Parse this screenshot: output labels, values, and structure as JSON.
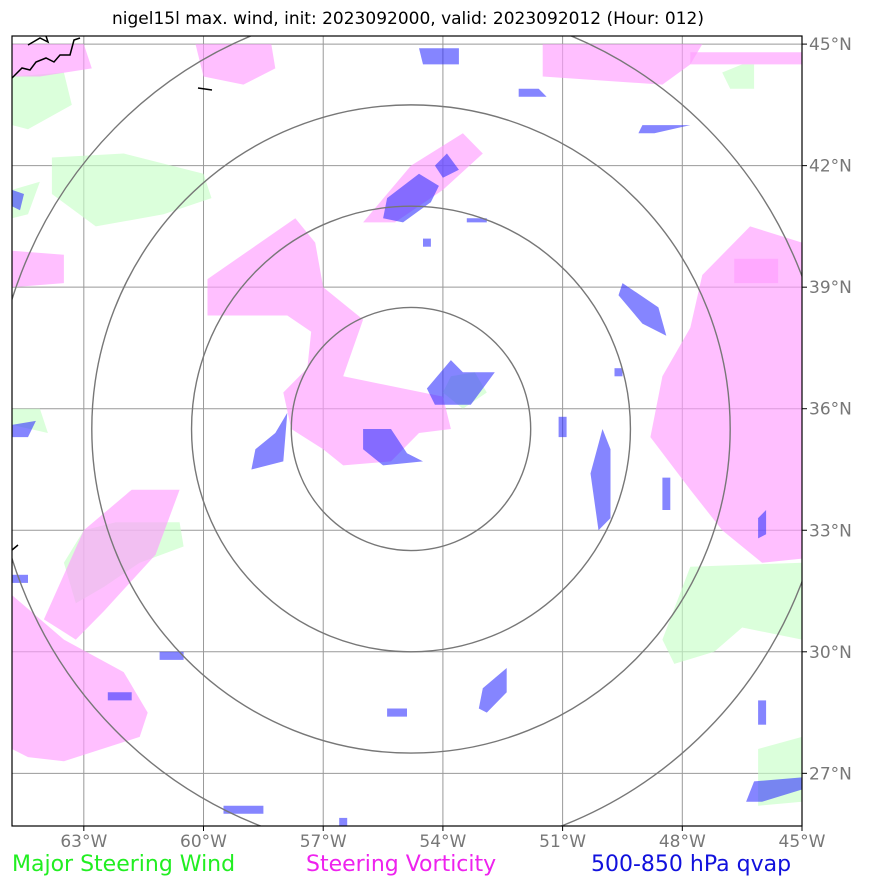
{
  "title": "nigel15l max. wind, init: 2023092000, valid: 2023092012 (Hour: 012)",
  "map": {
    "lon_range": [
      -64.8,
      -45.0
    ],
    "lat_range": [
      25.7,
      45.2
    ],
    "storm_center": {
      "lon": -54.8,
      "lat": 35.5
    },
    "range_rings_deg": [
      3.0,
      5.5,
      8.0,
      10.5
    ],
    "lon_ticks": [
      {
        "value": -63,
        "label": "63°W"
      },
      {
        "value": -60,
        "label": "60°W"
      },
      {
        "value": -57,
        "label": "57°W"
      },
      {
        "value": -54,
        "label": "54°W"
      },
      {
        "value": -51,
        "label": "51°W"
      },
      {
        "value": -48,
        "label": "48°W"
      },
      {
        "value": -45,
        "label": "45°W"
      }
    ],
    "lat_ticks": [
      {
        "value": 45,
        "label": "45°N"
      },
      {
        "value": 42,
        "label": "42°N"
      },
      {
        "value": 39,
        "label": "39°N"
      },
      {
        "value": 36,
        "label": "36°N"
      },
      {
        "value": 33,
        "label": "33°N"
      },
      {
        "value": 30,
        "label": "30°N"
      },
      {
        "value": 27,
        "label": "27°N"
      }
    ]
  },
  "layers": {
    "steering_wind": {
      "color": "#c8ffc8",
      "opacity": 0.65,
      "polygons": [
        [
          [
            -64.8,
            44.2
          ],
          [
            -63.5,
            44.3
          ],
          [
            -63.3,
            43.5
          ],
          [
            -64.4,
            42.9
          ],
          [
            -64.8,
            43.0
          ]
        ],
        [
          [
            -63.8,
            42.2
          ],
          [
            -62.0,
            42.3
          ],
          [
            -60.0,
            41.8
          ],
          [
            -59.8,
            41.2
          ],
          [
            -61.0,
            40.8
          ],
          [
            -62.7,
            40.5
          ],
          [
            -63.8,
            41.3
          ]
        ],
        [
          [
            -64.8,
            41.4
          ],
          [
            -64.1,
            41.6
          ],
          [
            -64.4,
            40.8
          ],
          [
            -64.8,
            40.7
          ]
        ],
        [
          [
            -62.2,
            33.2
          ],
          [
            -60.6,
            33.2
          ],
          [
            -60.5,
            32.6
          ],
          [
            -61.6,
            32.2
          ],
          [
            -62.5,
            31.6
          ],
          [
            -63.2,
            31.2
          ],
          [
            -63.5,
            32.2
          ],
          [
            -63.0,
            33.0
          ]
        ],
        [
          [
            -54.0,
            36.4
          ],
          [
            -53.8,
            36.8
          ],
          [
            -53.2,
            36.9
          ],
          [
            -52.9,
            36.4
          ],
          [
            -53.5,
            36.0
          ]
        ],
        [
          [
            -46.5,
            44.5
          ],
          [
            -46.2,
            44.5
          ],
          [
            -46.2,
            43.9
          ],
          [
            -46.8,
            43.9
          ],
          [
            -47.0,
            44.3
          ]
        ],
        [
          [
            -47.8,
            32.1
          ],
          [
            -45.0,
            32.2
          ],
          [
            -45.0,
            30.3
          ],
          [
            -46.5,
            30.6
          ],
          [
            -47.2,
            30.0
          ],
          [
            -48.2,
            29.7
          ],
          [
            -48.5,
            30.3
          ]
        ],
        [
          [
            -46.1,
            27.6
          ],
          [
            -45.0,
            27.9
          ],
          [
            -45.0,
            26.3
          ],
          [
            -46.1,
            26.2
          ]
        ],
        [
          [
            -64.8,
            36.0
          ],
          [
            -64.1,
            36.0
          ],
          [
            -63.9,
            35.4
          ],
          [
            -64.8,
            35.6
          ]
        ]
      ]
    },
    "steering_vorticity": {
      "color": "#ff9cff",
      "opacity": 0.65,
      "polygons": [
        [
          [
            -64.8,
            45.0
          ],
          [
            -63.0,
            45.0
          ],
          [
            -62.8,
            44.4
          ],
          [
            -64.1,
            44.2
          ],
          [
            -64.8,
            44.2
          ]
        ],
        [
          [
            -60.2,
            45.0
          ],
          [
            -58.3,
            45.0
          ],
          [
            -58.2,
            44.4
          ],
          [
            -59.0,
            44.0
          ],
          [
            -60.0,
            44.2
          ]
        ],
        [
          [
            -51.5,
            45.0
          ],
          [
            -47.5,
            45.0
          ],
          [
            -47.8,
            44.5
          ],
          [
            -48.5,
            44.0
          ],
          [
            -51.5,
            44.2
          ]
        ],
        [
          [
            -47.8,
            44.8
          ],
          [
            -45.0,
            44.8
          ],
          [
            -45.0,
            44.5
          ],
          [
            -47.8,
            44.5
          ]
        ],
        [
          [
            -56.0,
            40.6
          ],
          [
            -54.8,
            42.0
          ],
          [
            -53.5,
            42.8
          ],
          [
            -53.0,
            42.3
          ],
          [
            -54.0,
            41.4
          ],
          [
            -55.2,
            40.6
          ]
        ],
        [
          [
            -64.8,
            39.9
          ],
          [
            -63.5,
            39.8
          ],
          [
            -63.5,
            39.1
          ],
          [
            -64.8,
            39.0
          ]
        ],
        [
          [
            -59.9,
            39.2
          ],
          [
            -57.7,
            40.7
          ],
          [
            -57.2,
            40.1
          ],
          [
            -57.0,
            39.0
          ],
          [
            -56.0,
            38.2
          ],
          [
            -56.5,
            36.8
          ],
          [
            -55.0,
            36.5
          ],
          [
            -54.0,
            36.3
          ],
          [
            -53.8,
            35.5
          ],
          [
            -54.6,
            35.4
          ],
          [
            -55.3,
            34.7
          ],
          [
            -56.5,
            34.6
          ],
          [
            -57.0,
            35.0
          ],
          [
            -57.8,
            35.5
          ],
          [
            -58.0,
            36.4
          ],
          [
            -57.4,
            37.0
          ],
          [
            -57.3,
            37.9
          ],
          [
            -57.9,
            38.3
          ],
          [
            -59.9,
            38.3
          ]
        ],
        [
          [
            -47.5,
            39.3
          ],
          [
            -46.3,
            40.5
          ],
          [
            -45.0,
            40.1
          ],
          [
            -45.0,
            32.3
          ],
          [
            -46.0,
            32.2
          ],
          [
            -47.0,
            33.0
          ],
          [
            -47.8,
            34.0
          ],
          [
            -48.8,
            35.3
          ],
          [
            -48.5,
            36.8
          ],
          [
            -47.8,
            38.0
          ]
        ],
        [
          [
            -63.0,
            33.0
          ],
          [
            -61.8,
            34.0
          ],
          [
            -60.6,
            34.0
          ],
          [
            -61.2,
            32.4
          ],
          [
            -62.5,
            31.0
          ],
          [
            -63.2,
            30.3
          ],
          [
            -64.0,
            30.8
          ]
        ],
        [
          [
            -64.8,
            31.4
          ],
          [
            -63.5,
            30.3
          ],
          [
            -62.0,
            29.5
          ],
          [
            -61.4,
            28.5
          ],
          [
            -61.6,
            27.9
          ],
          [
            -63.5,
            27.3
          ],
          [
            -64.4,
            27.4
          ],
          [
            -64.8,
            27.6
          ]
        ],
        [
          [
            -46.7,
            39.7
          ],
          [
            -45.6,
            39.7
          ],
          [
            -45.6,
            39.1
          ],
          [
            -46.7,
            39.1
          ]
        ]
      ]
    },
    "qvap_500_850": {
      "color": "#3333ff",
      "opacity": 0.6,
      "polygons": [
        [
          [
            -55.4,
            41.2
          ],
          [
            -54.6,
            41.8
          ],
          [
            -54.1,
            41.5
          ],
          [
            -54.3,
            41.1
          ],
          [
            -55.0,
            40.6
          ],
          [
            -55.5,
            40.7
          ]
        ],
        [
          [
            -54.2,
            42.0
          ],
          [
            -53.9,
            42.3
          ],
          [
            -53.6,
            41.9
          ],
          [
            -54.0,
            41.7
          ]
        ],
        [
          [
            -54.6,
            44.9
          ],
          [
            -53.6,
            44.9
          ],
          [
            -53.6,
            44.5
          ],
          [
            -54.5,
            44.5
          ]
        ],
        [
          [
            -52.1,
            43.9
          ],
          [
            -51.6,
            43.9
          ],
          [
            -51.4,
            43.7
          ],
          [
            -52.1,
            43.7
          ]
        ],
        [
          [
            -49.0,
            43.0
          ],
          [
            -47.8,
            43.0
          ],
          [
            -48.7,
            42.8
          ],
          [
            -49.1,
            42.8
          ]
        ],
        [
          [
            -49.5,
            39.1
          ],
          [
            -48.6,
            38.5
          ],
          [
            -48.4,
            37.8
          ],
          [
            -49.0,
            38.1
          ],
          [
            -49.6,
            38.8
          ]
        ],
        [
          [
            -54.2,
            36.1
          ],
          [
            -53.3,
            36.1
          ],
          [
            -52.7,
            36.9
          ],
          [
            -53.5,
            36.9
          ],
          [
            -53.8,
            37.2
          ],
          [
            -54.4,
            36.5
          ]
        ],
        [
          [
            -56.0,
            35.5
          ],
          [
            -55.3,
            35.5
          ],
          [
            -54.9,
            34.9
          ],
          [
            -54.5,
            34.7
          ],
          [
            -55.5,
            34.6
          ],
          [
            -56.0,
            35.0
          ]
        ],
        [
          [
            -58.2,
            35.4
          ],
          [
            -57.9,
            35.9
          ],
          [
            -58.0,
            34.7
          ],
          [
            -58.8,
            34.5
          ],
          [
            -58.7,
            35.0
          ]
        ],
        [
          [
            -50.0,
            35.5
          ],
          [
            -49.8,
            35.0
          ],
          [
            -49.8,
            33.3
          ],
          [
            -50.1,
            33.0
          ],
          [
            -50.3,
            34.4
          ]
        ],
        [
          [
            -64.8,
            35.6
          ],
          [
            -64.2,
            35.7
          ],
          [
            -64.4,
            35.3
          ],
          [
            -64.8,
            35.3
          ]
        ],
        [
          [
            -64.8,
            41.4
          ],
          [
            -64.5,
            41.3
          ],
          [
            -64.6,
            40.9
          ],
          [
            -64.8,
            41.0
          ]
        ],
        [
          [
            -53.0,
            29.1
          ],
          [
            -52.4,
            29.6
          ],
          [
            -52.4,
            29.0
          ],
          [
            -52.9,
            28.5
          ],
          [
            -53.1,
            28.6
          ]
        ],
        [
          [
            -46.2,
            26.8
          ],
          [
            -45.0,
            26.9
          ],
          [
            -45.0,
            26.6
          ],
          [
            -46.0,
            26.3
          ],
          [
            -46.4,
            26.3
          ]
        ],
        [
          [
            -61.1,
            30.0
          ],
          [
            -60.5,
            30.0
          ],
          [
            -60.5,
            29.8
          ],
          [
            -61.1,
            29.8
          ]
        ],
        [
          [
            -62.4,
            29.0
          ],
          [
            -61.8,
            29.0
          ],
          [
            -61.8,
            28.8
          ],
          [
            -62.4,
            28.8
          ]
        ],
        [
          [
            -55.4,
            28.6
          ],
          [
            -54.9,
            28.6
          ],
          [
            -54.9,
            28.4
          ],
          [
            -55.4,
            28.4
          ]
        ],
        [
          [
            -59.5,
            26.2
          ],
          [
            -58.5,
            26.2
          ],
          [
            -58.5,
            26.0
          ],
          [
            -59.5,
            26.0
          ]
        ],
        [
          [
            -64.8,
            31.9
          ],
          [
            -64.4,
            31.9
          ],
          [
            -64.4,
            31.7
          ],
          [
            -64.8,
            31.7
          ]
        ],
        [
          [
            -46.1,
            33.3
          ],
          [
            -45.9,
            33.5
          ],
          [
            -45.9,
            32.9
          ],
          [
            -46.1,
            32.8
          ]
        ],
        [
          [
            -46.1,
            28.8
          ],
          [
            -45.9,
            28.8
          ],
          [
            -45.9,
            28.2
          ],
          [
            -46.1,
            28.2
          ]
        ],
        [
          [
            -53.4,
            40.7
          ],
          [
            -52.9,
            40.7
          ],
          [
            -52.9,
            40.6
          ],
          [
            -53.4,
            40.6
          ]
        ],
        [
          [
            -54.5,
            40.2
          ],
          [
            -54.3,
            40.2
          ],
          [
            -54.3,
            40.0
          ],
          [
            -54.5,
            40.0
          ]
        ],
        [
          [
            -48.5,
            34.3
          ],
          [
            -48.3,
            34.3
          ],
          [
            -48.3,
            33.5
          ],
          [
            -48.5,
            33.5
          ]
        ],
        [
          [
            -51.1,
            35.8
          ],
          [
            -50.9,
            35.8
          ],
          [
            -50.9,
            35.3
          ],
          [
            -51.1,
            35.3
          ]
        ],
        [
          [
            -49.7,
            37.0
          ],
          [
            -49.5,
            37.0
          ],
          [
            -49.5,
            36.8
          ],
          [
            -49.7,
            36.8
          ]
        ],
        [
          [
            -56.6,
            25.9
          ],
          [
            -56.4,
            25.9
          ],
          [
            -56.4,
            25.7
          ],
          [
            -56.6,
            25.7
          ]
        ]
      ]
    }
  },
  "legend": {
    "green": "Major Steering Wind",
    "magenta": "Steering Vorticity",
    "blue": "500-850 hPa qvap"
  }
}
